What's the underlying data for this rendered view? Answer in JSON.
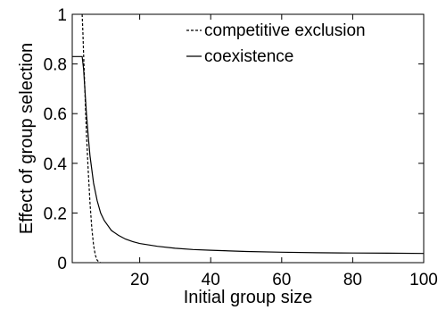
{
  "chart_data": {
    "type": "line",
    "title": "",
    "xlabel": "Initial group size",
    "ylabel": "Effect of group selection",
    "xlim": [
      1,
      100
    ],
    "ylim": [
      0,
      1
    ],
    "x_ticks": [
      20,
      40,
      60,
      80,
      100
    ],
    "y_ticks": [
      0,
      0.2,
      0.4,
      0.6,
      0.8,
      1
    ],
    "y_tick_labels": [
      "0",
      "0.2",
      "0.4",
      "0.6",
      "0.8",
      "1"
    ],
    "grid": false,
    "legend_position": "top-right",
    "colors": {
      "line": "#000000",
      "axis": "#000000",
      "background": "#ffffff"
    },
    "series": [
      {
        "name": "competitive exclusion",
        "style": "dashed",
        "x": [
          3.8,
          4.0,
          4.3,
          4.6,
          5.0,
          5.5,
          6.0,
          6.5,
          7.0,
          7.5,
          8.0,
          8.5,
          9.0
        ],
        "y": [
          1.0,
          0.93,
          0.8,
          0.68,
          0.52,
          0.37,
          0.24,
          0.14,
          0.07,
          0.03,
          0.01,
          0.003,
          0.0
        ]
      },
      {
        "name": "coexistence",
        "style": "solid",
        "x": [
          1,
          2,
          3,
          3.8,
          4.2,
          4.6,
          5,
          5.5,
          6,
          7,
          8,
          9,
          10,
          12,
          14,
          16,
          18,
          20,
          25,
          30,
          35,
          40,
          50,
          60,
          70,
          80,
          90,
          100
        ],
        "y": [
          0.83,
          0.83,
          0.83,
          0.83,
          0.78,
          0.69,
          0.6,
          0.51,
          0.43,
          0.32,
          0.25,
          0.2,
          0.17,
          0.13,
          0.11,
          0.095,
          0.085,
          0.077,
          0.066,
          0.058,
          0.053,
          0.05,
          0.045,
          0.042,
          0.04,
          0.039,
          0.038,
          0.037
        ]
      }
    ]
  }
}
